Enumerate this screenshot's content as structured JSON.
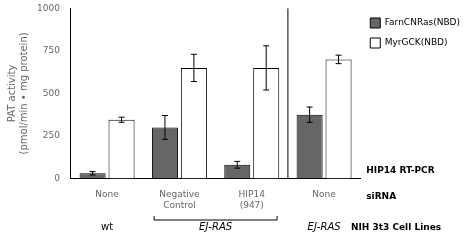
{
  "chart_data": {
    "type": "bar",
    "categories": [
      "None",
      "Negative Control",
      "HIP14 (947)",
      "None"
    ],
    "series": [
      {
        "name": "FarnCNRas(NBD)",
        "color": "#666666",
        "values": [
          30,
          300,
          80,
          375
        ],
        "errors": [
          10,
          70,
          20,
          45
        ]
      },
      {
        "name": "MyrGCK(NBD)",
        "color": "#ffffff",
        "values": [
          345,
          650,
          650,
          700
        ],
        "errors": [
          15,
          80,
          130,
          25
        ]
      }
    ],
    "ylabel": "PAT activity\n(pmol/min • mg protein)",
    "ylim": [
      0,
      1000
    ],
    "yticks": [
      0,
      250,
      500,
      750,
      1000
    ],
    "grid": false,
    "legend": "upper right",
    "annotations": [
      "wt",
      "EJ-RAS",
      "EJ-RAS",
      "NIH 3t3 Cell Lines",
      "HIP14 RT-PCR",
      "siRNA"
    ]
  }
}
